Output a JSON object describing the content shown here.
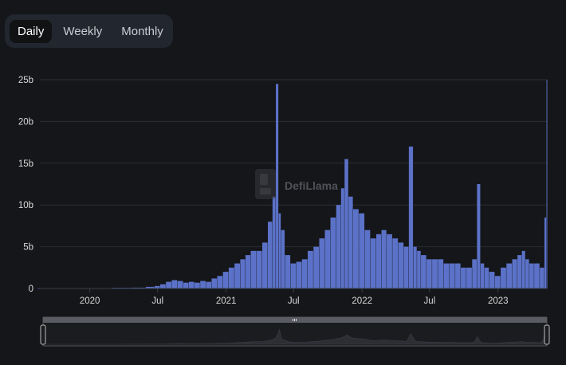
{
  "tabs": [
    {
      "label": "Daily",
      "active": true
    },
    {
      "label": "Weekly",
      "active": false
    },
    {
      "label": "Monthly",
      "active": false
    }
  ],
  "watermark": {
    "text": "DefiLlama"
  },
  "colors": {
    "background": "#151619",
    "bar": "#5b72c8",
    "grid": "#2a2d33",
    "axis_text": "#d8d8d8"
  },
  "chart_data": {
    "type": "bar",
    "title": "",
    "xlabel": "",
    "ylabel": "",
    "ylim": [
      0,
      25
    ],
    "y_unit": "b",
    "yticks": [
      {
        "value": 0,
        "label": "0"
      },
      {
        "value": 5,
        "label": "5b"
      },
      {
        "value": 10,
        "label": "10b"
      },
      {
        "value": 15,
        "label": "15b"
      },
      {
        "value": 20,
        "label": "20b"
      },
      {
        "value": 25,
        "label": "25b"
      }
    ],
    "xrange": [
      "2019-08-20",
      "2023-05-12"
    ],
    "xticks": [
      {
        "date": "2020-01-01",
        "label": "2020"
      },
      {
        "date": "2020-07-01",
        "label": "Jul"
      },
      {
        "date": "2021-01-01",
        "label": "2021"
      },
      {
        "date": "2021-07-01",
        "label": "Jul"
      },
      {
        "date": "2022-01-01",
        "label": "2022"
      },
      {
        "date": "2022-07-01",
        "label": "Jul"
      },
      {
        "date": "2023-01-01",
        "label": "2023"
      }
    ],
    "grid": true,
    "legend": "none",
    "interval": "daily",
    "x": [
      "2019-08-20",
      "2019-10-01",
      "2019-12-01",
      "2020-02-01",
      "2020-04-01",
      "2020-05-15",
      "2020-06-15",
      "2020-07-01",
      "2020-07-15",
      "2020-08-01",
      "2020-08-15",
      "2020-09-01",
      "2020-09-15",
      "2020-10-01",
      "2020-10-15",
      "2020-11-01",
      "2020-11-15",
      "2020-12-01",
      "2020-12-15",
      "2021-01-01",
      "2021-01-15",
      "2021-02-01",
      "2021-02-15",
      "2021-03-01",
      "2021-03-15",
      "2021-04-01",
      "2021-04-15",
      "2021-05-01",
      "2021-05-10",
      "2021-05-19",
      "2021-05-25",
      "2021-06-01",
      "2021-06-15",
      "2021-07-01",
      "2021-07-15",
      "2021-08-01",
      "2021-08-15",
      "2021-09-01",
      "2021-09-15",
      "2021-10-01",
      "2021-10-15",
      "2021-11-01",
      "2021-11-10",
      "2021-11-20",
      "2021-12-01",
      "2021-12-15",
      "2022-01-01",
      "2022-01-15",
      "2022-02-01",
      "2022-02-15",
      "2022-03-01",
      "2022-03-15",
      "2022-04-01",
      "2022-04-15",
      "2022-05-01",
      "2022-05-12",
      "2022-05-25",
      "2022-06-01",
      "2022-06-15",
      "2022-07-01",
      "2022-07-15",
      "2022-08-01",
      "2022-08-15",
      "2022-09-01",
      "2022-09-15",
      "2022-10-01",
      "2022-10-15",
      "2022-11-01",
      "2022-11-10",
      "2022-11-20",
      "2022-12-01",
      "2022-12-15",
      "2023-01-01",
      "2023-01-15",
      "2023-02-01",
      "2023-02-15",
      "2023-03-01",
      "2023-03-11",
      "2023-03-20",
      "2023-04-01",
      "2023-04-15",
      "2023-05-01",
      "2023-05-10",
      "2023-05-12"
    ],
    "values": [
      0.02,
      0.03,
      0.05,
      0.05,
      0.08,
      0.1,
      0.2,
      0.3,
      0.5,
      0.8,
      1.0,
      0.9,
      0.7,
      0.8,
      0.7,
      0.9,
      0.8,
      1.2,
      1.5,
      2.0,
      2.5,
      3.0,
      3.5,
      4.0,
      4.5,
      4.5,
      5.5,
      8.0,
      11.0,
      24.5,
      9.0,
      7.0,
      4.0,
      3.0,
      3.2,
      3.5,
      4.5,
      5.0,
      6.0,
      7.0,
      8.5,
      10.0,
      12.0,
      15.5,
      11.0,
      9.5,
      9.0,
      7.0,
      6.0,
      6.5,
      7.0,
      6.5,
      6.0,
      5.5,
      5.0,
      17.0,
      5.0,
      4.5,
      4.0,
      3.5,
      3.5,
      3.5,
      3.0,
      3.0,
      3.0,
      2.5,
      2.5,
      3.5,
      12.5,
      3.0,
      2.5,
      2.0,
      1.5,
      2.5,
      3.0,
      3.5,
      4.0,
      4.5,
      3.5,
      3.0,
      3.0,
      2.5,
      8.5,
      25.0
    ]
  }
}
